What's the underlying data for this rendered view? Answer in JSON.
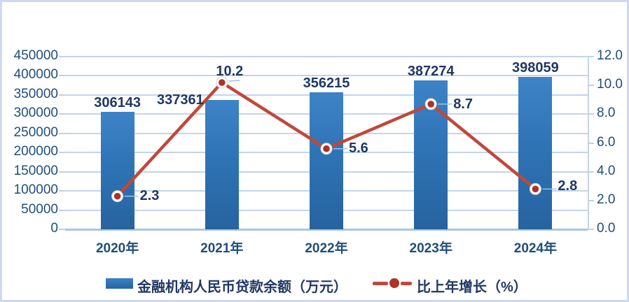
{
  "frame": {
    "background": "#ffffff",
    "border_color": "#ccd9ee",
    "accent_color": "#17375e"
  },
  "chart_data": {
    "type": "combo-bar-line",
    "title": "",
    "categories": [
      "2020年",
      "2021年",
      "2022年",
      "2023年",
      "2024年"
    ],
    "series": [
      {
        "name": "金融机构人民币贷款余额（万元）",
        "type": "bar",
        "values": [
          306143,
          337361,
          356215,
          387274,
          398059
        ],
        "labels": [
          "306143",
          "337361",
          "356215",
          "387274",
          "398059"
        ],
        "color": "#2e74b5",
        "axis": "left"
      },
      {
        "name": "比上年增长（%）",
        "type": "line",
        "values": [
          2.3,
          10.2,
          5.6,
          8.7,
          2.8
        ],
        "labels": [
          "2.3",
          "10.2",
          "5.6",
          "8.7",
          "2.8"
        ],
        "color": "#c0483a",
        "marker_color": "#ae3226",
        "axis": "right"
      }
    ],
    "left_axis": {
      "min": 0,
      "max": 450000,
      "step": 50000,
      "tick_labels": [
        "0",
        "50000",
        "100000",
        "150000",
        "200000",
        "250000",
        "300000",
        "350000",
        "400000",
        "450000"
      ]
    },
    "right_axis": {
      "min": 0,
      "max": 12,
      "step": 2,
      "tick_labels": [
        "0.0",
        "2.0",
        "4.0",
        "6.0",
        "8.0",
        "10.0",
        "12.0"
      ]
    },
    "grid": true,
    "gridline_color": "#c3d5ec",
    "text_color": "#1f4e79",
    "data_label_color": "#203864",
    "legend_position": "bottom"
  }
}
